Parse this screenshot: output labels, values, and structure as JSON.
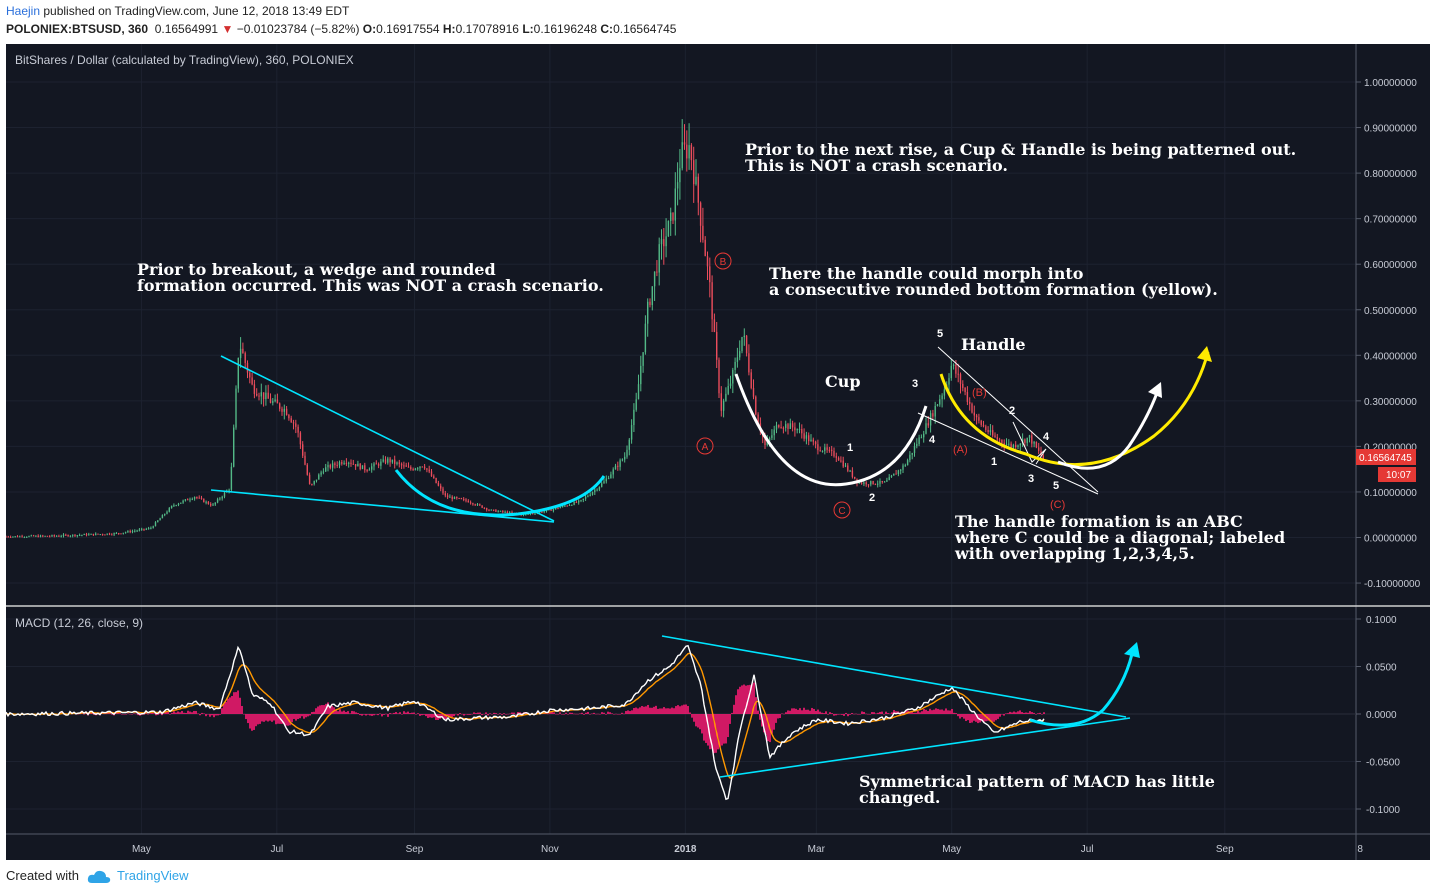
{
  "header": {
    "author": "Haejin",
    "published": " published on TradingView.com, June 12, 2018 13:49 EDT",
    "symbol": "POLONIEX:BTSUSD, 360",
    "last": "0.16564991",
    "change": "−0.01023784 (−5.82%)",
    "o_label": "O:",
    "o": "0.16917554",
    "h_label": "H:",
    "h": "0.17078916",
    "l_label": "L:",
    "l": "0.16196248",
    "c_label": "C:",
    "c": "0.16564745"
  },
  "chart": {
    "title": "BitShares / Dollar (calculated by TradingView), 360, POLONIEX",
    "price_label": "0.16564745",
    "timer_label": "10:07",
    "macd_title": "MACD (12, 26, close, 9)"
  },
  "annotations": {
    "a1": "Prior to breakout, a wedge and rounded\nformation occurred. This was NOT a crash scenario.",
    "a2": "Prior to the next rise, a Cup & Handle is being patterned out.\nThis is NOT a crash scenario.",
    "a3": "There the handle could morph into\na consecutive rounded bottom formation (yellow).",
    "a4": "The handle formation is an ABC\nwhere C could be a diagonal; labeled\nwith overlapping 1,2,3,4,5.",
    "a5": "Symmetrical pattern of MACD has little\nchanged.",
    "cup": "Cup",
    "handle": "Handle"
  },
  "footer": {
    "created_with": "Created with",
    "brand": "TradingView"
  },
  "colors": {
    "background": "#131722",
    "price_up": "#53b987",
    "price_down": "#eb4d5c",
    "cyan": "#00e5ff",
    "yellow": "#ffeb00",
    "macd_line": "#ffffff",
    "signal_line": "#ff9800",
    "histogram": "#ff1a75",
    "current_price": "#e53935"
  },
  "chart_data": [
    {
      "type": "line",
      "title": "BitShares / Dollar (calculated by TradingView), 360, POLONIEX",
      "x_ticks": [
        "May",
        "Jul",
        "Sep",
        "Nov",
        "2018",
        "Mar",
        "May",
        "Jul",
        "Sep",
        "8"
      ],
      "y_ticks": [
        "1.00000000",
        "0.90000000",
        "0.80000000",
        "0.70000000",
        "0.60000000",
        "0.50000000",
        "0.40000000",
        "0.30000000",
        "0.20000000",
        "0.10000000",
        "0.00000000",
        "-0.10000000"
      ],
      "ylim": [
        -0.12,
        1.02
      ],
      "series": [
        {
          "values": [
            [
              "2017-03-01",
              0.002
            ],
            [
              "2017-03-20",
              0.003
            ],
            [
              "2017-04-05",
              0.006
            ],
            [
              "2017-04-20",
              0.009
            ],
            [
              "2017-05-05",
              0.02
            ],
            [
              "2017-05-15",
              0.07
            ],
            [
              "2017-05-25",
              0.09
            ],
            [
              "2017-06-02",
              0.07
            ],
            [
              "2017-06-10",
              0.11
            ],
            [
              "2017-06-14",
              0.43
            ],
            [
              "2017-06-20",
              0.33
            ],
            [
              "2017-06-28",
              0.3
            ],
            [
              "2017-07-05",
              0.28
            ],
            [
              "2017-07-10",
              0.24
            ],
            [
              "2017-07-16",
              0.11
            ],
            [
              "2017-07-22",
              0.15
            ],
            [
              "2017-08-01",
              0.17
            ],
            [
              "2017-08-10",
              0.15
            ],
            [
              "2017-08-20",
              0.17
            ],
            [
              "2017-08-30",
              0.15
            ],
            [
              "2017-09-05",
              0.16
            ],
            [
              "2017-09-15",
              0.09
            ],
            [
              "2017-09-25",
              0.08
            ],
            [
              "2017-10-05",
              0.06
            ],
            [
              "2017-10-20",
              0.05
            ],
            [
              "2017-11-01",
              0.06
            ],
            [
              "2017-11-15",
              0.08
            ],
            [
              "2017-11-25",
              0.12
            ],
            [
              "2017-12-05",
              0.18
            ],
            [
              "2017-12-10",
              0.3
            ],
            [
              "2017-12-15",
              0.5
            ],
            [
              "2017-12-20",
              0.62
            ],
            [
              "2017-12-26",
              0.7
            ],
            [
              "2017-12-30",
              0.84
            ],
            [
              "2018-01-03",
              0.86
            ],
            [
              "2018-01-08",
              0.7
            ],
            [
              "2018-01-12",
              0.55
            ],
            [
              "2018-01-17",
              0.28
            ],
            [
              "2018-01-22",
              0.35
            ],
            [
              "2018-01-27",
              0.45
            ],
            [
              "2018-02-02",
              0.27
            ],
            [
              "2018-02-06",
              0.2
            ],
            [
              "2018-02-12",
              0.25
            ],
            [
              "2018-02-20",
              0.24
            ],
            [
              "2018-03-01",
              0.2
            ],
            [
              "2018-03-10",
              0.18
            ],
            [
              "2018-03-20",
              0.12
            ],
            [
              "2018-04-01",
              0.12
            ],
            [
              "2018-04-10",
              0.16
            ],
            [
              "2018-04-20",
              0.25
            ],
            [
              "2018-04-28",
              0.33
            ],
            [
              "2018-05-01",
              0.38
            ],
            [
              "2018-05-05",
              0.34
            ],
            [
              "2018-05-12",
              0.26
            ],
            [
              "2018-05-20",
              0.22
            ],
            [
              "2018-05-28",
              0.2
            ],
            [
              "2018-06-05",
              0.22
            ],
            [
              "2018-06-12",
              0.166
            ]
          ]
        }
      ]
    },
    {
      "type": "line",
      "title": "MACD (12, 26, close, 9)",
      "x_ticks": [
        "May",
        "Jul",
        "Sep",
        "Nov",
        "2018",
        "Mar",
        "May",
        "Jul",
        "Sep",
        "8"
      ],
      "y_ticks": [
        "0.1000",
        "0.0500",
        "0.0000",
        "-0.0500",
        "-0.1000"
      ],
      "ylim": [
        -0.12,
        0.11
      ],
      "series": [
        {
          "values": [
            [
              "2017-03-01",
              0
            ],
            [
              "2017-04-10",
              0.001
            ],
            [
              "2017-05-10",
              0.002
            ],
            [
              "2017-05-25",
              0.012
            ],
            [
              "2017-06-05",
              0.005
            ],
            [
              "2017-06-14",
              0.072
            ],
            [
              "2017-06-20",
              0.02
            ],
            [
              "2017-06-28",
              0.012
            ],
            [
              "2017-07-06",
              -0.018
            ],
            [
              "2017-07-16",
              -0.022
            ],
            [
              "2017-07-24",
              0.008
            ],
            [
              "2017-08-05",
              0.012
            ],
            [
              "2017-08-20",
              0.006
            ],
            [
              "2017-09-01",
              0.014
            ],
            [
              "2017-09-15",
              -0.006
            ],
            [
              "2017-10-01",
              -0.004
            ],
            [
              "2017-10-15",
              -0.003
            ],
            [
              "2017-11-01",
              0.004
            ],
            [
              "2017-11-20",
              0.006
            ],
            [
              "2017-12-05",
              0.01
            ],
            [
              "2017-12-15",
              0.035
            ],
            [
              "2017-12-25",
              0.05
            ],
            [
              "2018-01-02",
              0.072
            ],
            [
              "2018-01-08",
              0.03
            ],
            [
              "2018-01-15",
              -0.06
            ],
            [
              "2018-01-20",
              -0.092
            ],
            [
              "2018-01-26",
              -0.012
            ],
            [
              "2018-02-01",
              0.04
            ],
            [
              "2018-02-08",
              -0.045
            ],
            [
              "2018-02-18",
              -0.02
            ],
            [
              "2018-03-01",
              -0.006
            ],
            [
              "2018-03-15",
              -0.01
            ],
            [
              "2018-04-01",
              -0.004
            ],
            [
              "2018-04-15",
              0.006
            ],
            [
              "2018-05-01",
              0.028
            ],
            [
              "2018-05-10",
              0.004
            ],
            [
              "2018-05-20",
              -0.02
            ],
            [
              "2018-06-01",
              -0.008
            ],
            [
              "2018-06-12",
              -0.006
            ]
          ]
        }
      ]
    }
  ]
}
